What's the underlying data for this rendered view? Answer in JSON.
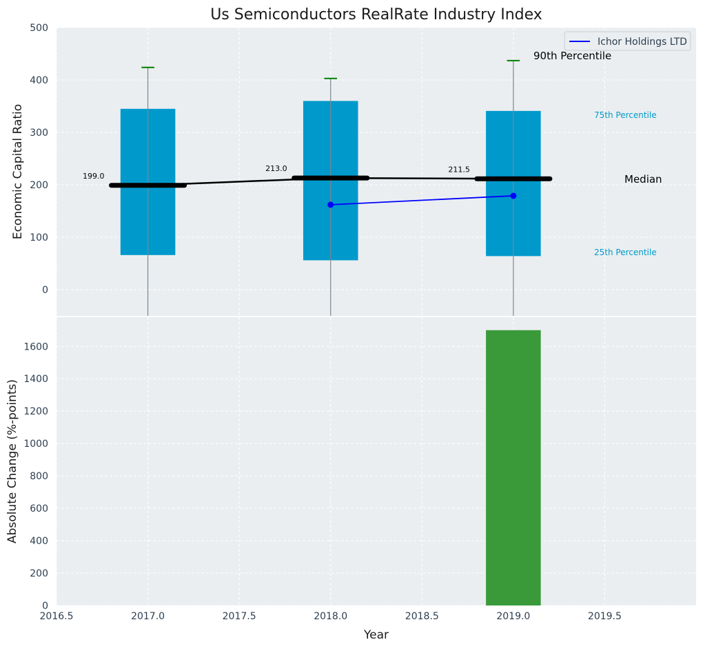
{
  "chart_data": {
    "title": "Us Semiconductors RealRate Industry Index",
    "xlabel": "Year",
    "xlim": [
      2016.5,
      2020.0
    ],
    "xticks": [
      "2016.5",
      "2017.0",
      "2017.5",
      "2018.0",
      "2018.5",
      "2019.0",
      "2019.5"
    ],
    "grid": true,
    "top_panel": {
      "type": "box",
      "ylabel": "Economic Capital Ratio",
      "ylim": [
        -50,
        500
      ],
      "yticks": [
        "0",
        "100",
        "200",
        "300",
        "400",
        "500"
      ],
      "box_color": "#0099cc",
      "median_color": "#000000",
      "whisker_cap_color": "#008000",
      "boxes": [
        {
          "x": 2017,
          "q1": 66,
          "median": 199.0,
          "q3": 345,
          "p90": 424
        },
        {
          "x": 2018,
          "q1": 56,
          "median": 213.0,
          "q3": 360,
          "p90": 403
        },
        {
          "x": 2019,
          "q1": 64,
          "median": 211.5,
          "q3": 341,
          "p90": 437
        }
      ],
      "median_labels": [
        "199.0",
        "213.0",
        "211.5"
      ],
      "company_series": {
        "name": "Ichor Holdings LTD",
        "color": "#0000ff",
        "x": [
          2018,
          2019
        ],
        "y": [
          162,
          179
        ]
      },
      "legend": {
        "placement": "top-right",
        "entry": "Ichor Holdings LTD"
      },
      "annotations": {
        "p90": "90th Percentile",
        "p75": "75th Percentile",
        "median": "Median",
        "p25": "25th Percentile"
      },
      "annotation_colors": {
        "p90": "#000000",
        "p75": "#0099cc",
        "median": "#000000",
        "p25": "#0099cc"
      }
    },
    "bottom_panel": {
      "type": "bar",
      "ylabel": "Absolute Change (%-points)",
      "ylim": [
        0,
        1780
      ],
      "yticks": [
        "0",
        "200",
        "400",
        "600",
        "800",
        "1000",
        "1200",
        "1400",
        "1600"
      ],
      "bar_color": "#3a9a3a",
      "bars": [
        {
          "x": 2019,
          "value": 1700
        }
      ]
    }
  }
}
